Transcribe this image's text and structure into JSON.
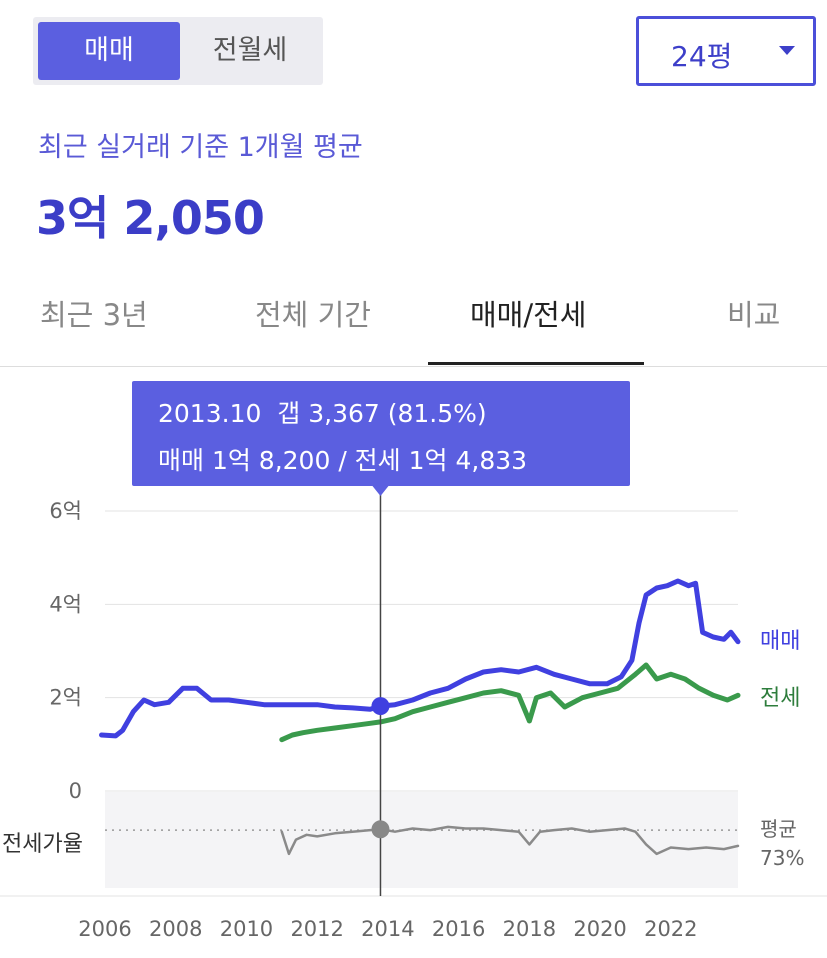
{
  "toggle": {
    "sale_label": "매매",
    "rent_label": "전월세"
  },
  "size_select": {
    "value": "24평"
  },
  "summary": {
    "subtitle": "최근 실거래 기준 1개월 평균",
    "price": "3억 2,050"
  },
  "tabs": [
    {
      "label": "최근 3년",
      "active": false
    },
    {
      "label": "전체 기간",
      "active": false
    },
    {
      "label": "매매/전세",
      "active": true
    },
    {
      "label": "비교",
      "active": false
    }
  ],
  "tooltip": {
    "line1": "2013.10  갭 3,367 (81.5%)",
    "line2": "매매 1억 8,200 / 전세 1억 4,833"
  },
  "colors": {
    "accent": "#5b5fe0",
    "sale": "#4040e0",
    "jeonse": "#3a9a4c",
    "ratio": "#8a8a8a"
  },
  "chart_data": {
    "type": "line",
    "y_ticks": [
      {
        "value": 0,
        "label": "0"
      },
      {
        "value": 2,
        "label": "2억"
      },
      {
        "value": 4,
        "label": "4억"
      },
      {
        "value": 6,
        "label": "6억"
      }
    ],
    "ylim": [
      0,
      6
    ],
    "xlim": [
      2006,
      2023.9
    ],
    "x_ticks": [
      {
        "value": 2006,
        "label": "2006"
      },
      {
        "value": 2008,
        "label": "2008"
      },
      {
        "value": 2010,
        "label": "2010"
      },
      {
        "value": 2012,
        "label": "2012"
      },
      {
        "value": 2014,
        "label": "2014"
      },
      {
        "value": 2016,
        "label": "2016"
      },
      {
        "value": 2018,
        "label": "2018"
      },
      {
        "value": 2020,
        "label": "2020"
      },
      {
        "value": 2022,
        "label": "2022"
      }
    ],
    "cursor": {
      "x": 2013.79,
      "sale": 1.82,
      "jeonse": 1.4833,
      "ratio": 81.5
    },
    "series": [
      {
        "name": "매매",
        "x": [
          2005.9,
          2006.3,
          2006.5,
          2006.8,
          2007.1,
          2007.4,
          2007.8,
          2008.2,
          2008.6,
          2009.0,
          2009.5,
          2010.0,
          2010.5,
          2011.0,
          2011.5,
          2012.0,
          2012.5,
          2013.0,
          2013.5,
          2013.79,
          2014.2,
          2014.7,
          2015.2,
          2015.7,
          2016.2,
          2016.7,
          2017.2,
          2017.7,
          2018.2,
          2018.7,
          2019.2,
          2019.7,
          2020.2,
          2020.6,
          2020.9,
          2021.1,
          2021.3,
          2021.6,
          2021.9,
          2022.2,
          2022.5,
          2022.7,
          2022.9,
          2023.2,
          2023.5,
          2023.7,
          2023.9
        ],
        "values": [
          1.2,
          1.18,
          1.3,
          1.7,
          1.95,
          1.85,
          1.9,
          2.2,
          2.2,
          1.95,
          1.95,
          1.9,
          1.85,
          1.85,
          1.85,
          1.85,
          1.8,
          1.78,
          1.75,
          1.82,
          1.85,
          1.95,
          2.1,
          2.2,
          2.4,
          2.55,
          2.6,
          2.55,
          2.65,
          2.5,
          2.4,
          2.3,
          2.3,
          2.45,
          2.8,
          3.6,
          4.2,
          4.35,
          4.4,
          4.5,
          4.4,
          4.45,
          3.4,
          3.3,
          3.25,
          3.4,
          3.2
        ]
      },
      {
        "name": "전세",
        "x": [
          2011.0,
          2011.3,
          2011.6,
          2012.0,
          2012.5,
          2013.0,
          2013.5,
          2013.79,
          2014.2,
          2014.7,
          2015.2,
          2015.7,
          2016.2,
          2016.7,
          2017.2,
          2017.7,
          2018.0,
          2018.2,
          2018.6,
          2019.0,
          2019.5,
          2020.0,
          2020.5,
          2021.0,
          2021.3,
          2021.6,
          2022.0,
          2022.4,
          2022.8,
          2023.2,
          2023.6,
          2023.9
        ],
        "values": [
          1.1,
          1.2,
          1.25,
          1.3,
          1.35,
          1.4,
          1.45,
          1.48,
          1.55,
          1.7,
          1.8,
          1.9,
          2.0,
          2.1,
          2.15,
          2.05,
          1.5,
          2.0,
          2.1,
          1.8,
          2.0,
          2.1,
          2.2,
          2.5,
          2.7,
          2.4,
          2.5,
          2.4,
          2.2,
          2.05,
          1.95,
          2.05
        ]
      },
      {
        "name": "전세가율",
        "x": [
          2011.0,
          2011.2,
          2011.4,
          2011.7,
          2012.0,
          2012.5,
          2013.0,
          2013.5,
          2013.79,
          2014.2,
          2014.7,
          2015.2,
          2015.7,
          2016.2,
          2016.7,
          2017.2,
          2017.7,
          2018.0,
          2018.3,
          2018.7,
          2019.2,
          2019.7,
          2020.2,
          2020.7,
          2021.0,
          2021.3,
          2021.6,
          2022.0,
          2022.5,
          2023.0,
          2023.5,
          2023.9
        ],
        "values": [
          80,
          66,
          75,
          78,
          77,
          79,
          80,
          81,
          81.5,
          80,
          82,
          81,
          83,
          82,
          82,
          81,
          80,
          72,
          80,
          81,
          82,
          80,
          81,
          82,
          80,
          72,
          66,
          70,
          69,
          70,
          69,
          71
        ]
      }
    ],
    "series_labels": {
      "sale": "매매",
      "jeonse": "전세"
    },
    "ratio_label": "전세가율",
    "ratio_avg_label_1": "평균",
    "ratio_avg_label_2": "73%",
    "ratio_avg": 73
  }
}
